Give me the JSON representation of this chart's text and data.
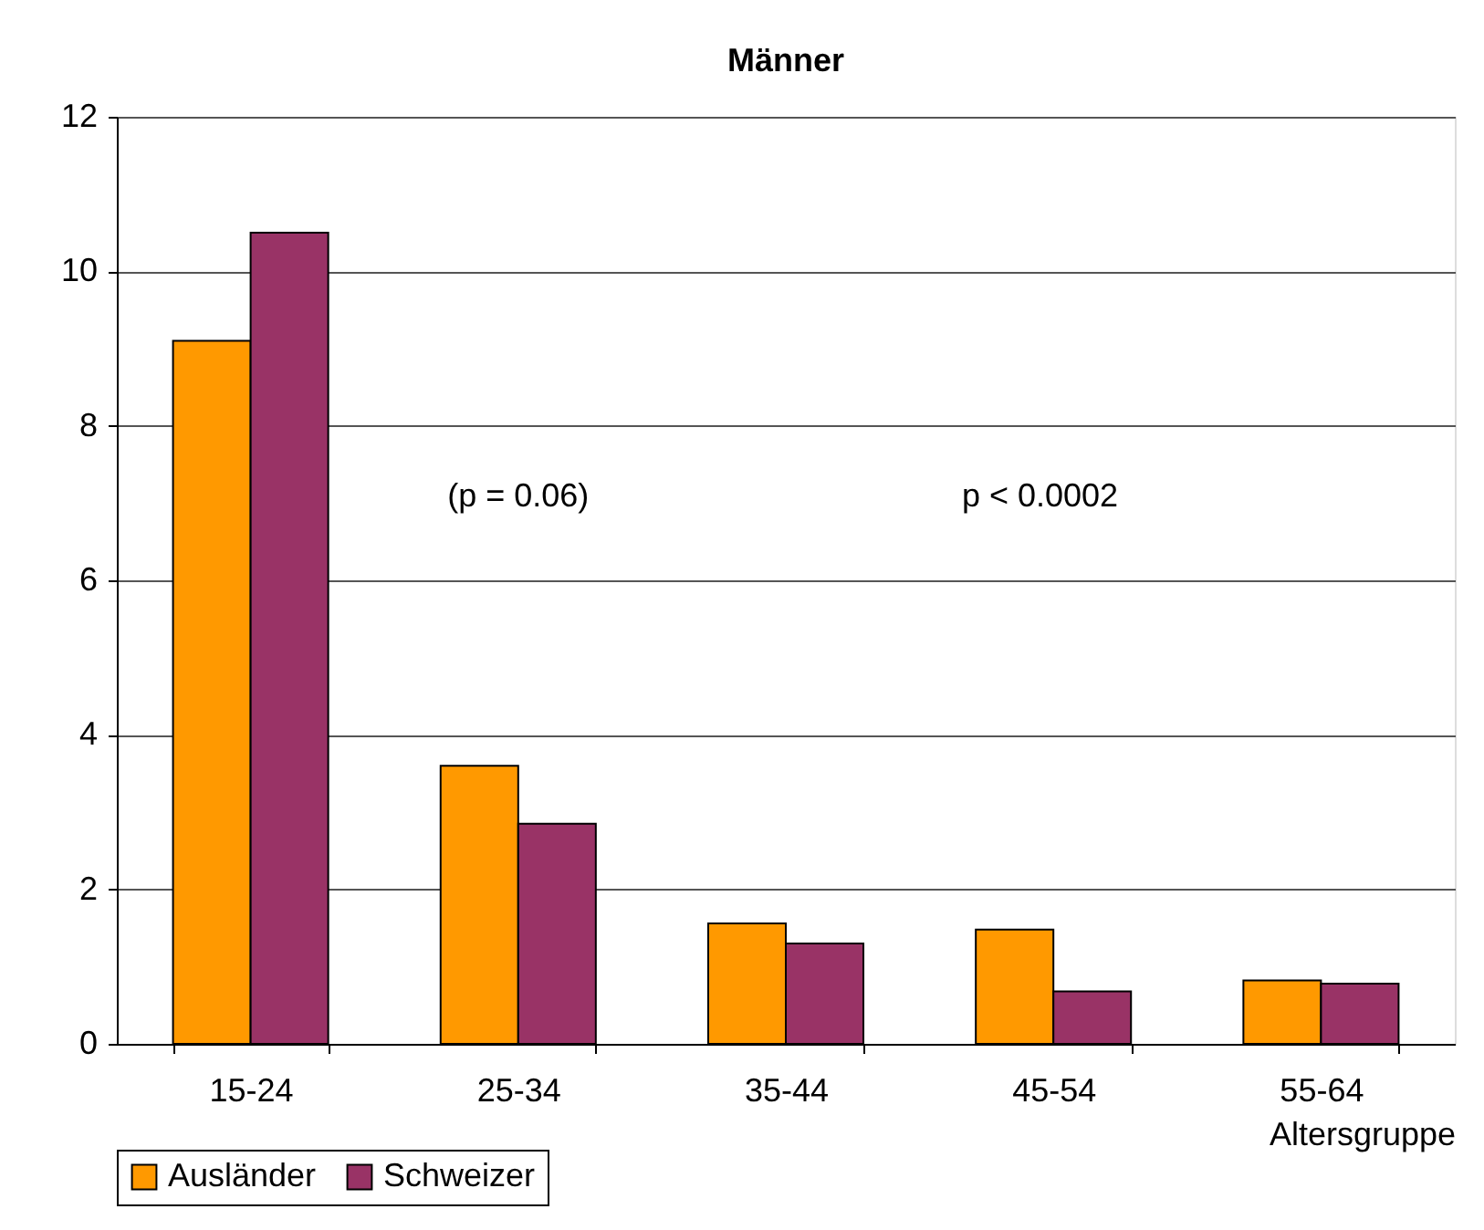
{
  "chart_data": {
    "type": "bar",
    "title": "Männer",
    "xlabel": "Altersgruppe",
    "categories": [
      "15-24",
      "25-34",
      "35-44",
      "45-54",
      "55-64"
    ],
    "series": [
      {
        "name": "Ausländer",
        "color": "#ff9900",
        "values": [
          9.1,
          3.6,
          1.56,
          1.48,
          0.82
        ]
      },
      {
        "name": "Schweizer",
        "color": "#993366",
        "values": [
          10.5,
          2.85,
          1.3,
          0.68,
          0.78
        ]
      }
    ],
    "ylim": [
      0,
      12
    ],
    "yticks": [
      0,
      2,
      4,
      6,
      8,
      10,
      12
    ],
    "grid": "y",
    "legend": "bottom",
    "annotations": [
      "(p = 0.06)",
      "p < 0.0002"
    ]
  }
}
